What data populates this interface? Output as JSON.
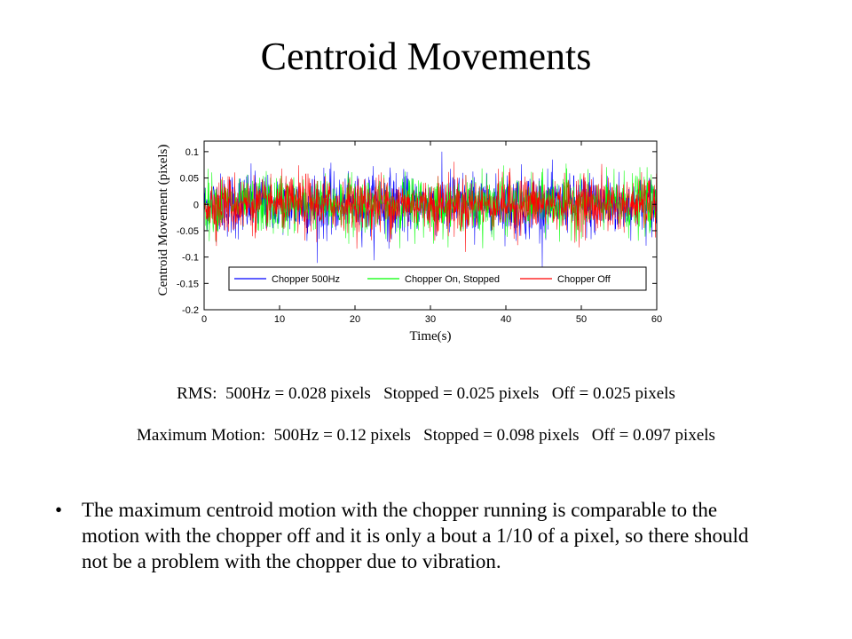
{
  "slide": {
    "title": "Centroid Movements",
    "rms_line": "RMS:  500Hz = 0.028 pixels   Stopped = 0.025 pixels   Off = 0.025 pixels",
    "max_line": "Maximum Motion:  500Hz = 0.12 pixels   Stopped = 0.098 pixels   Off = 0.097 pixels",
    "bullet_symbol": "•",
    "bullet_text": "The maximum centroid motion with the chopper running is comparable to the motion with the chopper off and it is only a bout a 1/10 of a pixel, so there should not be a problem with the chopper due to vibration."
  },
  "chart_data": {
    "type": "line",
    "title": "",
    "xlabel": "Time(s)",
    "ylabel": "Centroid Movement (pixels)",
    "xlim": [
      0,
      60
    ],
    "ylim": [
      -0.2,
      0.12
    ],
    "x_ticks": [
      0,
      10,
      20,
      30,
      40,
      50,
      60
    ],
    "x_tick_labels": [
      "0",
      "10",
      "20",
      "30",
      "40",
      "50",
      "60"
    ],
    "y_ticks": [
      0.1,
      0.05,
      0,
      -0.05,
      -0.1,
      -0.15,
      -0.2
    ],
    "y_tick_labels": [
      "0.1",
      "0.05",
      "0",
      "-0.05",
      "-0.1",
      "-0.15",
      "-0.2"
    ],
    "grid": false,
    "legend_position": "bottom-right",
    "series": [
      {
        "name": "Chopper 500Hz",
        "color": "#0000ff",
        "rms": 0.028,
        "max": 0.12
      },
      {
        "name": "Chopper On, Stopped",
        "color": "#00ff00",
        "rms": 0.025,
        "max": 0.098
      },
      {
        "name": "Chopper Off",
        "color": "#ff0000",
        "rms": 0.025,
        "max": 0.097
      }
    ]
  }
}
